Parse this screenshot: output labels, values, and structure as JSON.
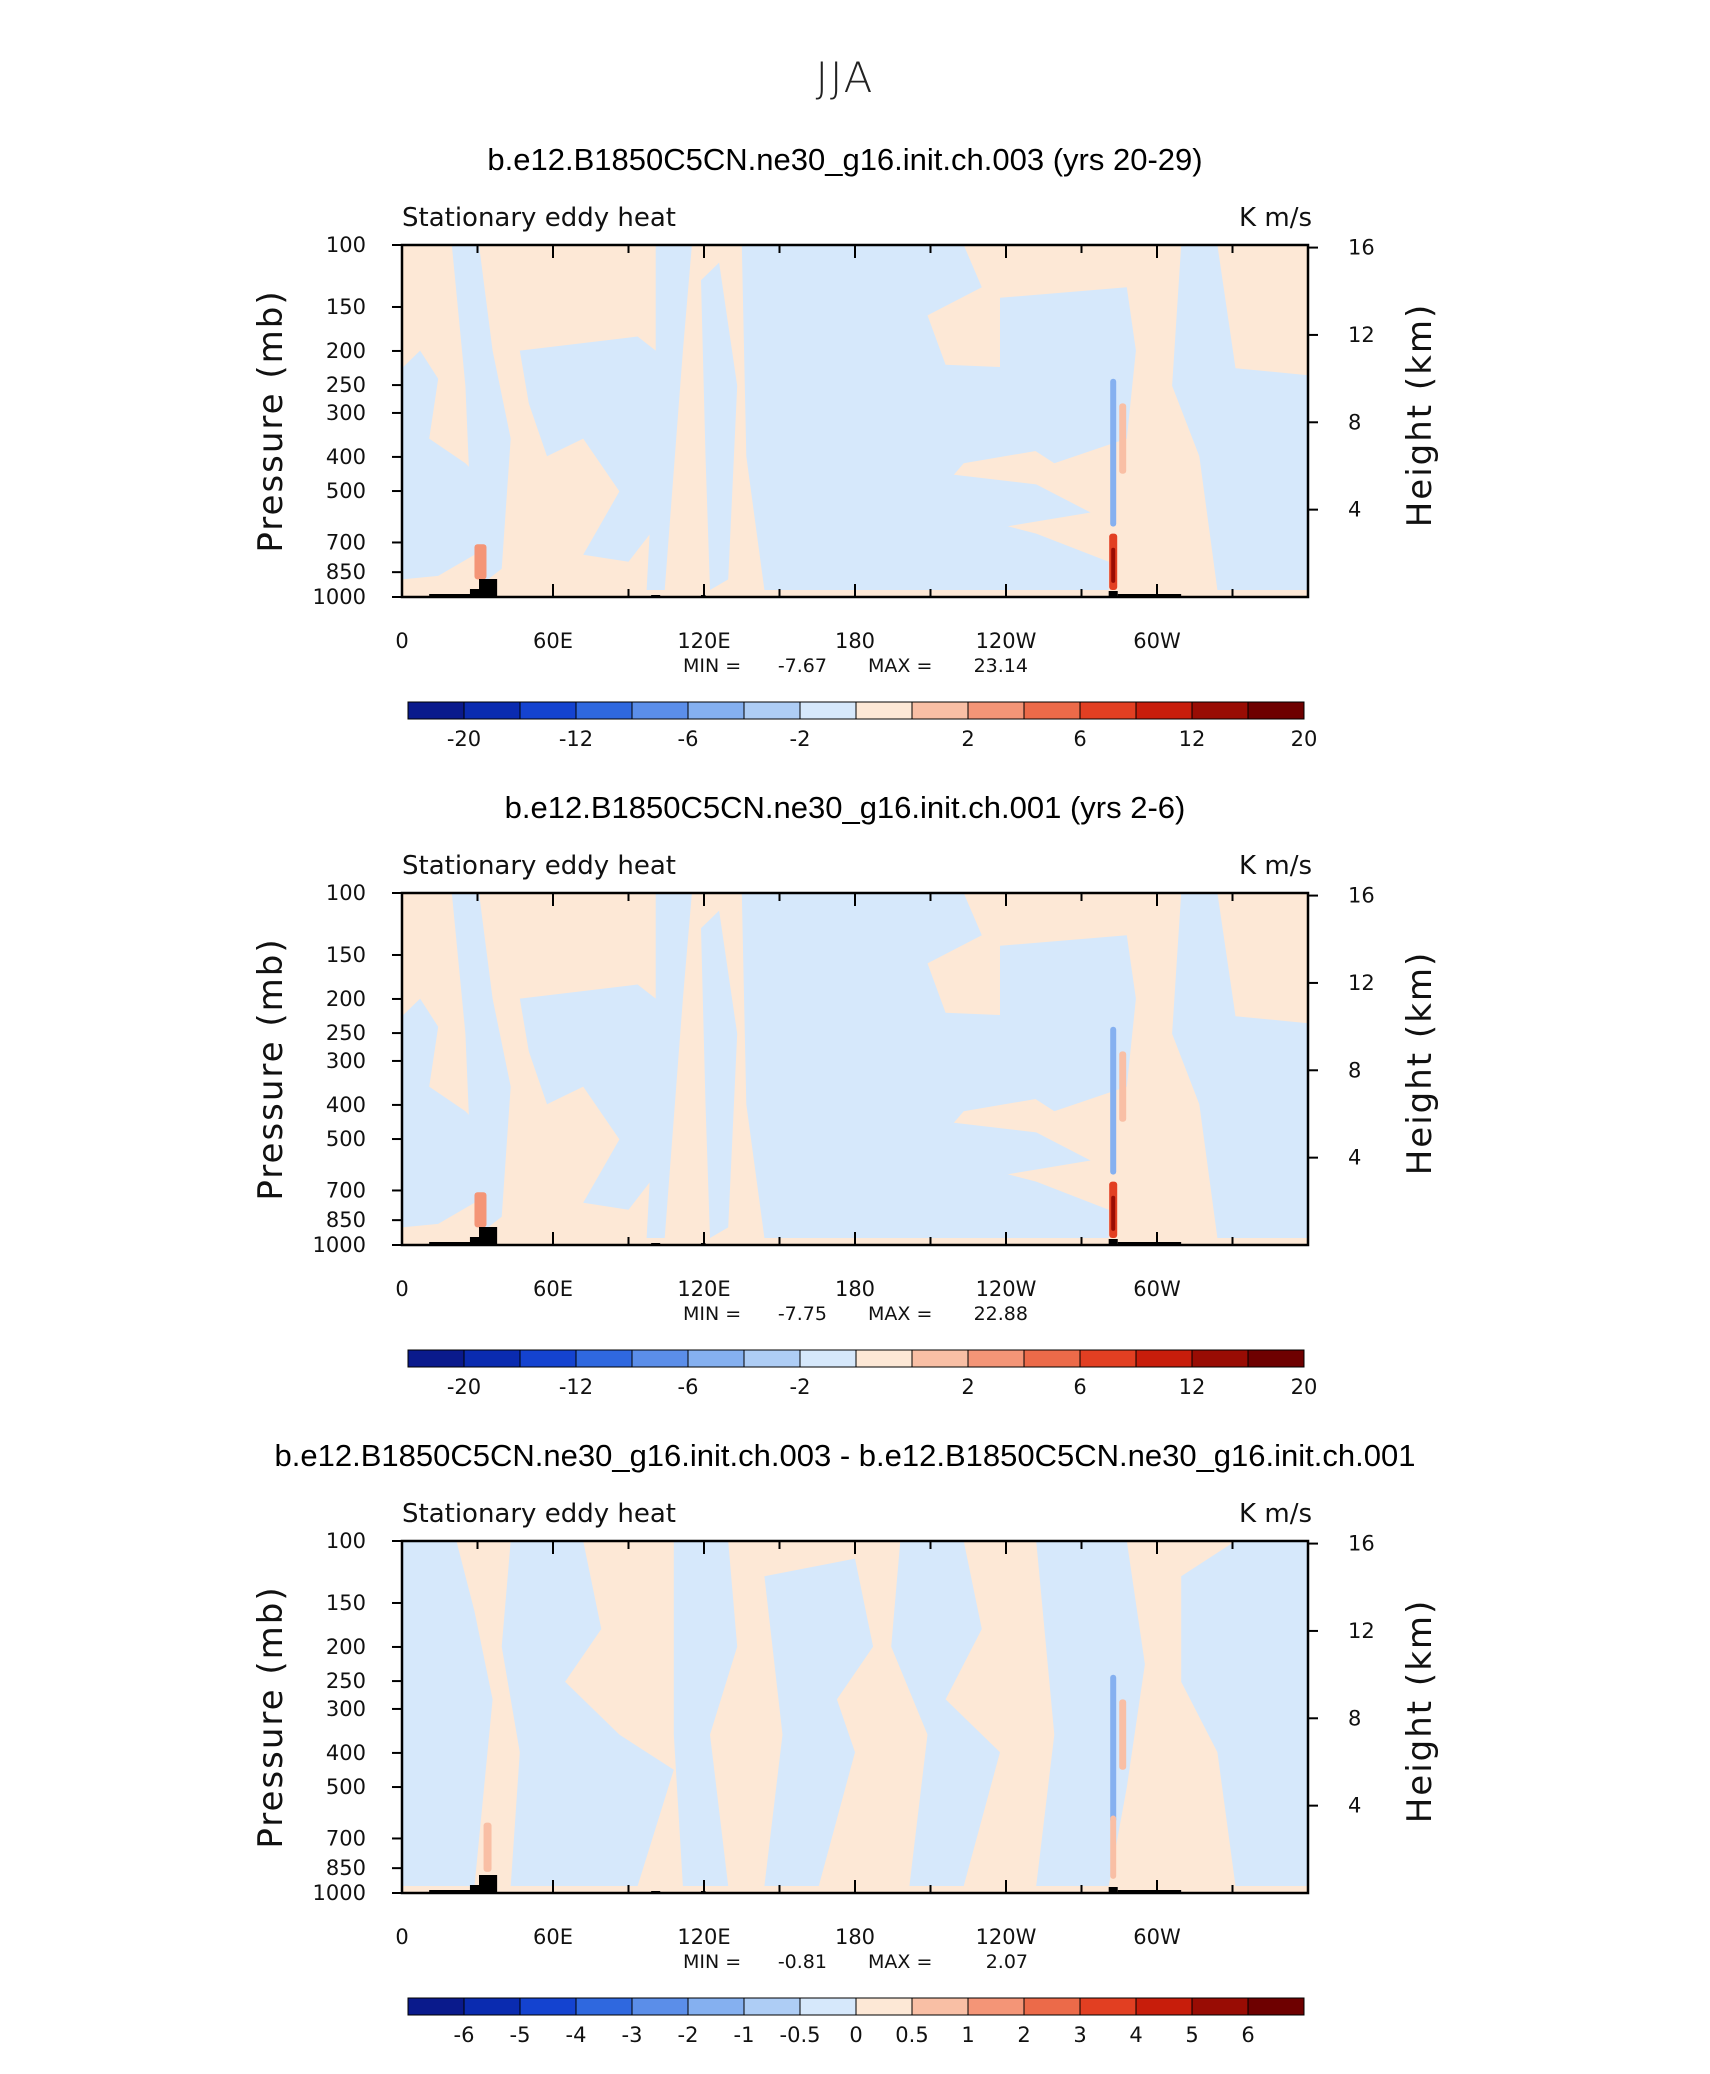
{
  "figure_title": "JJA",
  "colors": {
    "warm_light": "#fde8d6",
    "cool_light": "#d6e8fb",
    "warm_scale": [
      "#fde8d6",
      "#f9bfa5",
      "#f49577",
      "#ec6a49",
      "#e23f22",
      "#c81d0b",
      "#990c04",
      "#6e0000"
    ],
    "cool_scale": [
      "#d6e8fb",
      "#aecdf5",
      "#85b0f0",
      "#5b8ee9",
      "#2f68df",
      "#1443d0",
      "#0a2bb0",
      "#0a1a8c"
    ],
    "land": "#000000"
  },
  "chart_data": [
    {
      "type": "heatmap",
      "title": "b.e12.B1850C5CN.ne30_g16.init.ch.003 (yrs 20-29)",
      "left_label": "Stationary eddy heat",
      "right_label": "K m/s",
      "ylabel": "Pressure (mb)",
      "ylabel_right": "Height (km)",
      "x_ticks": [
        "0",
        "60E",
        "120E",
        "180",
        "120W",
        "60W"
      ],
      "y_ticks": [
        "100",
        "150",
        "200",
        "250",
        "300",
        "400",
        "500",
        "700",
        "850",
        "1000"
      ],
      "y_ticks_right": [
        "16",
        "12",
        "8",
        "4"
      ],
      "stats": {
        "min": "-7.67",
        "max": "23.14"
      },
      "stats_text": {
        "min_label": "MIN =",
        "max_label": "MAX =",
        "min": "-7.67",
        "max": "23.14"
      },
      "colorbar": {
        "labels": [
          "-20",
          "-12",
          "-6",
          "-2",
          "2",
          "6",
          "12",
          "20"
        ],
        "levels": [
          -20,
          -16,
          -12,
          -8,
          -6,
          -4,
          -2,
          0,
          2,
          4,
          6,
          8,
          12,
          16,
          20
        ]
      },
      "variant": 0
    },
    {
      "type": "heatmap",
      "title": "b.e12.B1850C5CN.ne30_g16.init.ch.001 (yrs 2-6)",
      "left_label": "Stationary eddy heat",
      "right_label": "K m/s",
      "ylabel": "Pressure (mb)",
      "ylabel_right": "Height (km)",
      "x_ticks": [
        "0",
        "60E",
        "120E",
        "180",
        "120W",
        "60W"
      ],
      "y_ticks": [
        "100",
        "150",
        "200",
        "250",
        "300",
        "400",
        "500",
        "700",
        "850",
        "1000"
      ],
      "y_ticks_right": [
        "16",
        "12",
        "8",
        "4"
      ],
      "stats": {
        "min": "-7.75",
        "max": "22.88"
      },
      "stats_text": {
        "min_label": "MIN =",
        "max_label": "MAX =",
        "min": "-7.75",
        "max": "22.88"
      },
      "colorbar": {
        "labels": [
          "-20",
          "-12",
          "-6",
          "-2",
          "2",
          "6",
          "12",
          "20"
        ],
        "levels": [
          -20,
          -16,
          -12,
          -8,
          -6,
          -4,
          -2,
          0,
          2,
          4,
          6,
          8,
          12,
          16,
          20
        ]
      },
      "variant": 1
    },
    {
      "type": "heatmap",
      "title": "b.e12.B1850C5CN.ne30_g16.init.ch.003 - b.e12.B1850C5CN.ne30_g16.init.ch.001",
      "left_label": "Stationary eddy heat",
      "right_label": "K m/s",
      "ylabel": "Pressure (mb)",
      "ylabel_right": "Height (km)",
      "x_ticks": [
        "0",
        "60E",
        "120E",
        "180",
        "120W",
        "60W"
      ],
      "y_ticks": [
        "100",
        "150",
        "200",
        "250",
        "300",
        "400",
        "500",
        "700",
        "850",
        "1000"
      ],
      "y_ticks_right": [
        "16",
        "12",
        "8",
        "4"
      ],
      "stats": {
        "min": "-0.81",
        "max": "2.07"
      },
      "stats_text": {
        "min_label": "MIN =",
        "max_label": "MAX =",
        "min": "-0.81",
        "max": "2.07"
      },
      "colorbar": {
        "labels": [
          "-6",
          "-5",
          "-4",
          "-3",
          "-2",
          "-1",
          "-0.5",
          "0",
          "0.5",
          "1",
          "2",
          "3",
          "4",
          "5",
          "6"
        ],
        "levels": [
          -6,
          -5,
          -4,
          -3,
          -2,
          -1,
          -0.5,
          0,
          0.5,
          1,
          2,
          3,
          4,
          5,
          6
        ]
      },
      "variant": 2
    }
  ]
}
